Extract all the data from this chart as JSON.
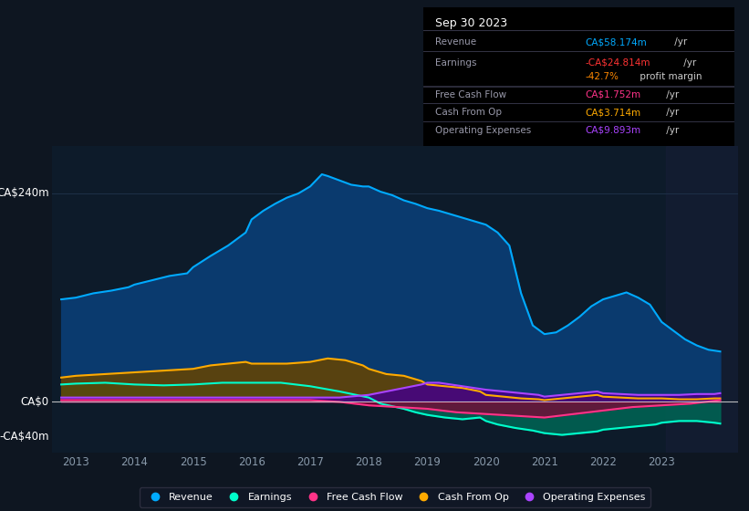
{
  "bg_color": "#0e1621",
  "plot_bg_color": "#0d1b2a",
  "grid_color": "#1e3048",
  "title_box_date": "Sep 30 2023",
  "ylabel_top": "CA$240m",
  "ylabel_zero": "CA$0",
  "ylabel_neg": "-CA$40m",
  "ylim": [
    -58,
    295
  ],
  "y_240_val": 240,
  "y_0_val": 0,
  "y_neg40_val": -40,
  "xlim_start": 2012.6,
  "xlim_end": 2024.3,
  "xticks": [
    2013,
    2014,
    2015,
    2016,
    2017,
    2018,
    2019,
    2020,
    2021,
    2022,
    2023
  ],
  "shade_start": 2023.08,
  "shade_end": 2024.3,
  "revenue_color": "#00aaff",
  "revenue_fill": "#0a3a6e",
  "earnings_color": "#00ffcc",
  "earnings_fill": "#006655",
  "fcf_color": "#ff3388",
  "fcf_fill": "#880033",
  "cashop_color": "#ffaa00",
  "cashop_fill": "#664400",
  "opex_color": "#aa44ff",
  "opex_fill": "#440088",
  "revenue_x": [
    2012.75,
    2013.0,
    2013.3,
    2013.6,
    2013.9,
    2014.0,
    2014.3,
    2014.6,
    2014.9,
    2015.0,
    2015.3,
    2015.6,
    2015.9,
    2016.0,
    2016.2,
    2016.4,
    2016.6,
    2016.8,
    2017.0,
    2017.1,
    2017.2,
    2017.3,
    2017.5,
    2017.7,
    2017.9,
    2018.0,
    2018.2,
    2018.4,
    2018.6,
    2018.8,
    2019.0,
    2019.2,
    2019.4,
    2019.6,
    2019.8,
    2020.0,
    2020.2,
    2020.4,
    2020.6,
    2020.8,
    2021.0,
    2021.2,
    2021.4,
    2021.6,
    2021.8,
    2022.0,
    2022.2,
    2022.4,
    2022.6,
    2022.8,
    2023.0,
    2023.2,
    2023.4,
    2023.6,
    2023.8,
    2024.0
  ],
  "revenue_y": [
    118,
    120,
    125,
    128,
    132,
    135,
    140,
    145,
    148,
    155,
    168,
    180,
    195,
    210,
    220,
    228,
    235,
    240,
    248,
    255,
    262,
    260,
    255,
    250,
    248,
    248,
    242,
    238,
    232,
    228,
    223,
    220,
    216,
    212,
    208,
    204,
    195,
    180,
    125,
    88,
    78,
    80,
    88,
    98,
    110,
    118,
    122,
    126,
    120,
    112,
    92,
    82,
    72,
    65,
    60,
    58
  ],
  "earnings_x": [
    2012.75,
    2013.0,
    2013.5,
    2014.0,
    2014.5,
    2015.0,
    2015.5,
    2016.0,
    2016.5,
    2017.0,
    2017.5,
    2018.0,
    2018.2,
    2018.4,
    2018.6,
    2018.8,
    2019.0,
    2019.3,
    2019.6,
    2019.9,
    2020.0,
    2020.2,
    2020.5,
    2020.8,
    2021.0,
    2021.3,
    2021.6,
    2021.9,
    2022.0,
    2022.3,
    2022.6,
    2022.9,
    2023.0,
    2023.3,
    2023.6,
    2023.9,
    2024.0
  ],
  "earnings_y": [
    20,
    21,
    22,
    20,
    19,
    20,
    22,
    22,
    22,
    18,
    12,
    5,
    -2,
    -5,
    -8,
    -12,
    -15,
    -18,
    -20,
    -18,
    -22,
    -26,
    -30,
    -33,
    -36,
    -38,
    -36,
    -34,
    -32,
    -30,
    -28,
    -26,
    -24,
    -22,
    -22,
    -24,
    -25
  ],
  "cashop_x": [
    2012.75,
    2013.0,
    2013.5,
    2014.0,
    2014.5,
    2015.0,
    2015.3,
    2015.6,
    2015.9,
    2016.0,
    2016.3,
    2016.6,
    2017.0,
    2017.3,
    2017.6,
    2017.9,
    2018.0,
    2018.3,
    2018.6,
    2018.9,
    2019.0,
    2019.3,
    2019.6,
    2019.9,
    2020.0,
    2020.3,
    2020.6,
    2020.9,
    2021.0,
    2021.3,
    2021.6,
    2021.9,
    2022.0,
    2022.3,
    2022.6,
    2022.9,
    2023.0,
    2023.3,
    2023.6,
    2023.9,
    2024.0
  ],
  "cashop_y": [
    28,
    30,
    32,
    34,
    36,
    38,
    42,
    44,
    46,
    44,
    44,
    44,
    46,
    50,
    48,
    42,
    38,
    32,
    30,
    24,
    20,
    18,
    16,
    12,
    8,
    6,
    4,
    3,
    2,
    4,
    6,
    8,
    6,
    5,
    4,
    4,
    4,
    3,
    3,
    4,
    4
  ],
  "opex_x": [
    2012.75,
    2013.0,
    2013.5,
    2014.0,
    2014.5,
    2015.0,
    2015.5,
    2016.0,
    2016.5,
    2017.0,
    2017.5,
    2018.0,
    2018.3,
    2018.6,
    2018.9,
    2019.0,
    2019.2,
    2019.4,
    2019.6,
    2019.8,
    2020.0,
    2020.3,
    2020.6,
    2020.9,
    2021.0,
    2021.3,
    2021.6,
    2021.9,
    2022.0,
    2022.3,
    2022.6,
    2022.9,
    2023.0,
    2023.3,
    2023.6,
    2023.9,
    2024.0
  ],
  "opex_y": [
    5,
    5,
    5,
    5,
    5,
    5,
    5,
    5,
    5,
    5,
    5,
    8,
    12,
    16,
    20,
    22,
    22,
    20,
    18,
    16,
    14,
    12,
    10,
    8,
    6,
    8,
    10,
    12,
    10,
    9,
    8,
    8,
    8,
    8,
    9,
    9,
    10
  ],
  "fcf_x": [
    2012.75,
    2013.0,
    2013.5,
    2014.0,
    2014.5,
    2015.0,
    2015.5,
    2016.0,
    2016.5,
    2017.0,
    2017.5,
    2018.0,
    2018.5,
    2019.0,
    2019.5,
    2020.0,
    2020.5,
    2021.0,
    2021.5,
    2022.0,
    2022.5,
    2023.0,
    2023.5,
    2024.0
  ],
  "fcf_y": [
    2,
    2,
    2,
    2,
    2,
    2,
    2,
    2,
    2,
    2,
    0,
    -4,
    -6,
    -8,
    -12,
    -14,
    -16,
    -18,
    -14,
    -10,
    -6,
    -4,
    -2,
    2
  ],
  "info_box": {
    "date": "Sep 30 2023",
    "rows": [
      {
        "label": "Revenue",
        "value": "CA$58.174m",
        "suffix": " /yr",
        "value_color": "#00aaff"
      },
      {
        "label": "Earnings",
        "value": "-CA$24.814m",
        "suffix": " /yr",
        "value_color": "#ff3333"
      },
      {
        "label": "",
        "value": "-42.7%",
        "suffix": " profit margin",
        "value_color": "#ff8800"
      },
      {
        "label": "Free Cash Flow",
        "value": "CA$1.752m",
        "suffix": " /yr",
        "value_color": "#ff3388"
      },
      {
        "label": "Cash From Op",
        "value": "CA$3.714m",
        "suffix": " /yr",
        "value_color": "#ffaa00"
      },
      {
        "label": "Operating Expenses",
        "value": "CA$9.893m",
        "suffix": " /yr",
        "value_color": "#aa44ff"
      }
    ]
  }
}
